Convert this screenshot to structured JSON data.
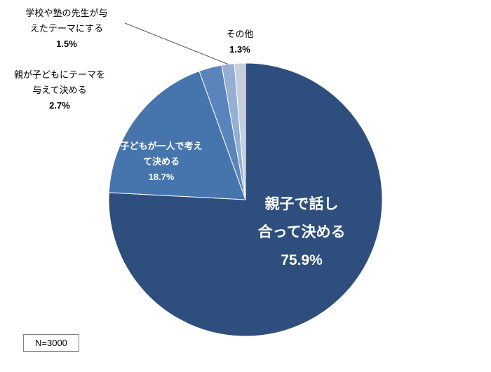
{
  "chart_data": {
    "type": "pie",
    "title": "",
    "unit": "%",
    "start_angle_deg": 0,
    "direction": "clockwise",
    "note": "N=3000",
    "legend_position": "none",
    "slices": [
      {
        "label": "親子で話し合って決める",
        "value": 75.9,
        "pct_label": "75.9%",
        "color": "#2E4E7E",
        "label_lines": [
          "親子で話し",
          "合って決める"
        ],
        "label_position": "inside"
      },
      {
        "label": "子どもが一人で考えて決める",
        "value": 18.7,
        "pct_label": "18.7%",
        "color": "#4674AC",
        "label_lines": [
          "子どもが一人で考え",
          "て決める"
        ],
        "label_position": "inside"
      },
      {
        "label": "親が子どもにテーマを与えて決める",
        "value": 2.7,
        "pct_label": "2.7%",
        "color": "#5A85BC",
        "label_lines": [
          "親が子どもにテーマを",
          "与えて決める"
        ],
        "label_position": "outside"
      },
      {
        "label": "学校や塾の先生が与えたテーマにする",
        "value": 1.5,
        "pct_label": "1.5%",
        "color": "#93AFD2",
        "label_lines": [
          "学校や塾の先生が与",
          "えたテーマにする"
        ],
        "label_position": "outside"
      },
      {
        "label": "その他",
        "value": 1.3,
        "pct_label": "1.3%",
        "color": "#C7CFDE",
        "label_lines": [
          "その他"
        ],
        "label_position": "outside"
      }
    ],
    "colors": {
      "slice_border": "#ffffff",
      "leader_line": "#595959",
      "note_border": "#7f7f7f",
      "outside_label_text": "#000000",
      "inside_label_text": "#ffffff"
    }
  }
}
